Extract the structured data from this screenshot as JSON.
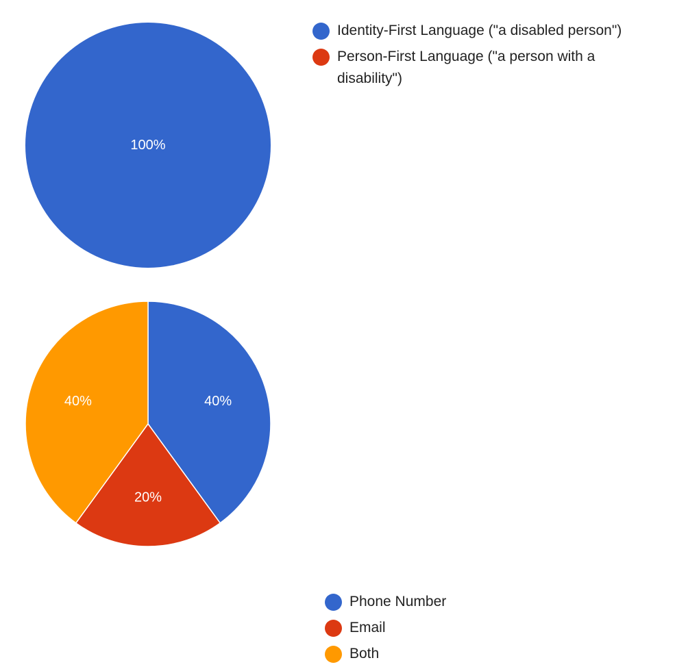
{
  "chart_data": [
    {
      "type": "pie",
      "title": "",
      "categories": [
        "Identity-First Language (\"a disabled person\")",
        "Person-First Language (\"a person with a disability\")"
      ],
      "values": [
        100,
        0
      ],
      "value_labels": [
        "100%",
        ""
      ],
      "colors": [
        "#3366cc",
        "#dc3912"
      ],
      "legend_placement": "right"
    },
    {
      "type": "pie",
      "title": "",
      "categories": [
        "Phone Number",
        "Email",
        "Both"
      ],
      "values": [
        40,
        20,
        40
      ],
      "value_labels": [
        "40%",
        "20%",
        "40%"
      ],
      "colors": [
        "#3366cc",
        "#dc3912",
        "#ff9900"
      ],
      "legend_placement": "right"
    }
  ]
}
